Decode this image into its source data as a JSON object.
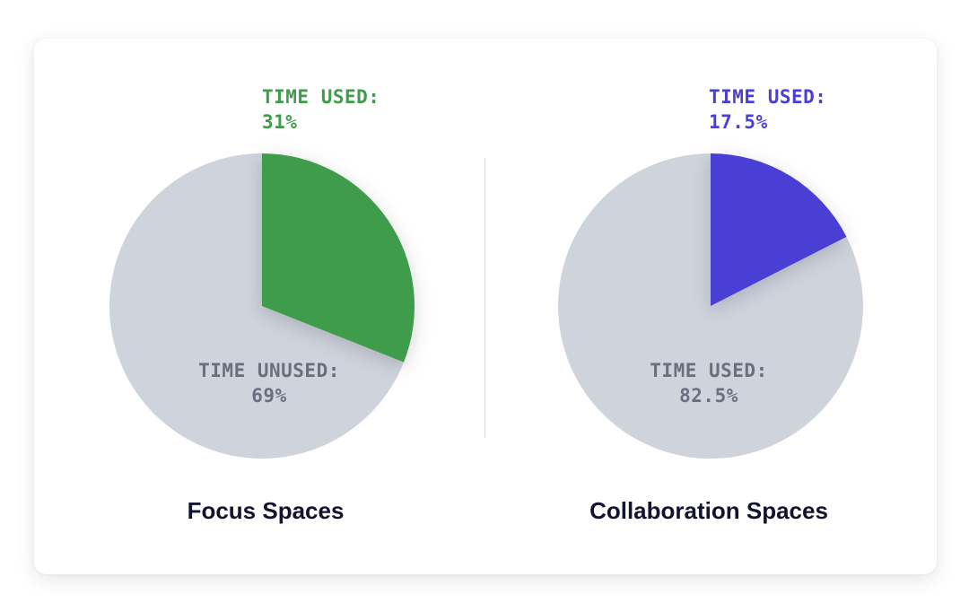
{
  "chart_data": [
    {
      "type": "pie",
      "title": "Focus Spaces",
      "slices": [
        {
          "label": "TIME USED:",
          "value": 31,
          "display": "31%",
          "color": "#3f9c4a"
        },
        {
          "label": "TIME UNUSED:",
          "value": 69,
          "display": "69%",
          "color": "#cfd3dc"
        }
      ]
    },
    {
      "type": "pie",
      "title": "Collaboration Spaces",
      "slices": [
        {
          "label": "TIME USED:",
          "value": 17.5,
          "display": "17.5%",
          "color": "#4a3fd4"
        },
        {
          "label": "TIME USED:",
          "value": 82.5,
          "display": "82.5%",
          "color": "#cfd3dc"
        }
      ]
    }
  ]
}
